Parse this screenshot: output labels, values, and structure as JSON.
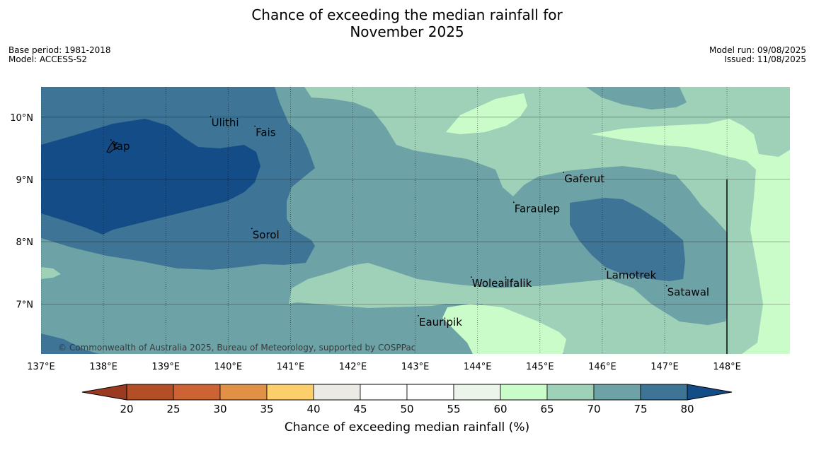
{
  "title": {
    "line1": "Chance of exceeding the median rainfall for",
    "line2": "November 2025"
  },
  "meta_left": {
    "base_period": "Base period: 1981-2018",
    "model": "Model: ACCESS-S2"
  },
  "meta_right": {
    "model_run": "Model run: 09/08/2025",
    "issued": "Issued: 11/08/2025"
  },
  "copyright": "© Commonwealth of Australia 2025, Bureau of Meteorology, supported by COSPPac",
  "map": {
    "lon_ticks": [
      {
        "value": 137,
        "label": "137°E"
      },
      {
        "value": 138,
        "label": "138°E"
      },
      {
        "value": 139,
        "label": "139°E"
      },
      {
        "value": 140,
        "label": "140°E"
      },
      {
        "value": 141,
        "label": "141°E"
      },
      {
        "value": 142,
        "label": "142°E"
      },
      {
        "value": 143,
        "label": "143°E"
      },
      {
        "value": 144,
        "label": "144°E"
      },
      {
        "value": 145,
        "label": "145°E"
      },
      {
        "value": 146,
        "label": "146°E"
      },
      {
        "value": 147,
        "label": "147°E"
      },
      {
        "value": 148,
        "label": "148°E"
      }
    ],
    "lat_ticks": [
      {
        "value": 10,
        "label": "10°N"
      },
      {
        "value": 9,
        "label": "9°N"
      },
      {
        "value": 8,
        "label": "8°N"
      },
      {
        "value": 7,
        "label": "7°N"
      }
    ],
    "places": [
      {
        "name": "Ulithi",
        "lon": 139.72,
        "lat": 9.9
      },
      {
        "name": "Fais",
        "lon": 140.43,
        "lat": 9.74
      },
      {
        "name": "Yap",
        "lon": 138.12,
        "lat": 9.52
      },
      {
        "name": "Gaferut",
        "lon": 145.38,
        "lat": 9.0
      },
      {
        "name": "Faraulep",
        "lon": 144.58,
        "lat": 8.52
      },
      {
        "name": "Sorol",
        "lon": 140.38,
        "lat": 8.1
      },
      {
        "name": "Lamotrek",
        "lon": 146.05,
        "lat": 7.45
      },
      {
        "name": "Woleai",
        "lon": 143.9,
        "lat": 7.32
      },
      {
        "name": "Ifalik",
        "lon": 144.45,
        "lat": 7.32
      },
      {
        "name": "Satawal",
        "lon": 147.03,
        "lat": 7.18
      },
      {
        "name": "Eauripik",
        "lon": 143.05,
        "lat": 6.7
      }
    ]
  },
  "colors": {
    "c20_25": "#b24f27",
    "c25_30": "#cd6232",
    "c30_35": "#e09145",
    "c35_40": "#fdcf6b",
    "c40_45": "#eceae5",
    "c45_50": "#ffffff",
    "c50_55": "#ffffff",
    "c55_60": "#ebf5ea",
    "c60_65": "#c9fcc9",
    "c65_70": "#9ed1b8",
    "c70_75": "#6da3a6",
    "c75_80": "#3e7596",
    "c80_plus": "#144c88",
    "below_20": "#9a3a20"
  },
  "colorbar": {
    "ticks": [
      "20",
      "25",
      "30",
      "35",
      "40",
      "45",
      "50",
      "55",
      "60",
      "65",
      "70",
      "75",
      "80"
    ],
    "label": "Chance of exceeding median rainfall (%)"
  }
}
